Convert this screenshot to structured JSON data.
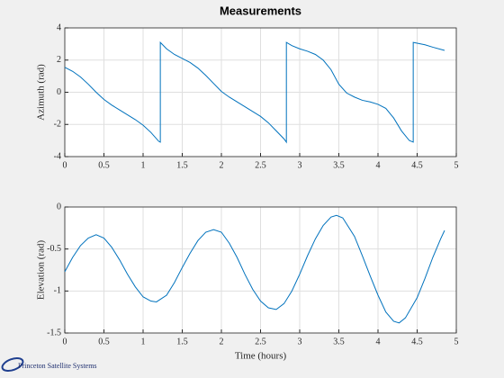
{
  "chart_data": [
    {
      "type": "line",
      "title": "Measurements",
      "ylabel": "Azimuth (rad)",
      "xlim": [
        0,
        5
      ],
      "xticks": [
        0,
        0.5,
        1,
        1.5,
        2,
        2.5,
        3,
        3.5,
        4,
        4.5,
        5
      ],
      "ylim": [
        -4,
        4
      ],
      "yticks": [
        -4,
        -2,
        0,
        2,
        4
      ],
      "grid": true,
      "series": [
        {
          "color": "#0072bd",
          "x": [
            0,
            0.1,
            0.2,
            0.3,
            0.4,
            0.5,
            0.6,
            0.7,
            0.8,
            0.9,
            1.0,
            1.1,
            1.2,
            1.22,
            1.22,
            1.3,
            1.4,
            1.5,
            1.6,
            1.7,
            1.8,
            1.9,
            2.0,
            2.1,
            2.2,
            2.3,
            2.4,
            2.5,
            2.6,
            2.7,
            2.8,
            2.83,
            2.83,
            2.9,
            3.0,
            3.1,
            3.2,
            3.3,
            3.4,
            3.5,
            3.6,
            3.7,
            3.8,
            3.9,
            4.0,
            4.1,
            4.2,
            4.3,
            4.4,
            4.45,
            4.45,
            4.6,
            4.7,
            4.85
          ],
          "values": [
            1.55,
            1.3,
            0.95,
            0.5,
            0.0,
            -0.45,
            -0.8,
            -1.1,
            -1.4,
            -1.7,
            -2.05,
            -2.5,
            -3.05,
            -3.1,
            3.1,
            2.7,
            2.35,
            2.1,
            1.85,
            1.5,
            1.05,
            0.55,
            0.05,
            -0.3,
            -0.6,
            -0.9,
            -1.2,
            -1.5,
            -1.9,
            -2.4,
            -2.9,
            -3.1,
            3.1,
            2.9,
            2.7,
            2.55,
            2.35,
            2.0,
            1.4,
            0.5,
            -0.05,
            -0.3,
            -0.5,
            -0.6,
            -0.75,
            -1.0,
            -1.6,
            -2.4,
            -3.0,
            -3.1,
            3.1,
            2.95,
            2.8,
            2.6
          ]
        }
      ]
    },
    {
      "type": "line",
      "ylabel": "Elevation (rad)",
      "xlabel": "Time (hours)",
      "xlim": [
        0,
        5
      ],
      "xticks": [
        0,
        0.5,
        1,
        1.5,
        2,
        2.5,
        3,
        3.5,
        4,
        4.5,
        5
      ],
      "ylim": [
        -1.5,
        0
      ],
      "yticks": [
        -1.5,
        -1,
        -0.5,
        0
      ],
      "grid": true,
      "series": [
        {
          "color": "#0072bd",
          "x": [
            0,
            0.1,
            0.2,
            0.3,
            0.4,
            0.5,
            0.6,
            0.7,
            0.8,
            0.9,
            1.0,
            1.1,
            1.17,
            1.3,
            1.4,
            1.5,
            1.6,
            1.7,
            1.8,
            1.9,
            2.0,
            2.1,
            2.2,
            2.3,
            2.4,
            2.5,
            2.6,
            2.7,
            2.8,
            2.9,
            3.0,
            3.1,
            3.2,
            3.3,
            3.4,
            3.47,
            3.55,
            3.7,
            3.8,
            3.9,
            4.0,
            4.1,
            4.2,
            4.27,
            4.35,
            4.5,
            4.6,
            4.7,
            4.8,
            4.85
          ],
          "values": [
            -0.77,
            -0.6,
            -0.46,
            -0.37,
            -0.33,
            -0.37,
            -0.48,
            -0.63,
            -0.8,
            -0.95,
            -1.07,
            -1.12,
            -1.13,
            -1.05,
            -0.9,
            -0.72,
            -0.55,
            -0.4,
            -0.3,
            -0.27,
            -0.3,
            -0.43,
            -0.6,
            -0.8,
            -0.98,
            -1.12,
            -1.2,
            -1.22,
            -1.15,
            -1.0,
            -0.8,
            -0.58,
            -0.38,
            -0.22,
            -0.12,
            -0.1,
            -0.13,
            -0.35,
            -0.58,
            -0.82,
            -1.05,
            -1.25,
            -1.36,
            -1.38,
            -1.32,
            -1.08,
            -0.85,
            -0.6,
            -0.38,
            -0.28
          ]
        }
      ]
    }
  ],
  "footer": "Princeton Satellite Systems"
}
